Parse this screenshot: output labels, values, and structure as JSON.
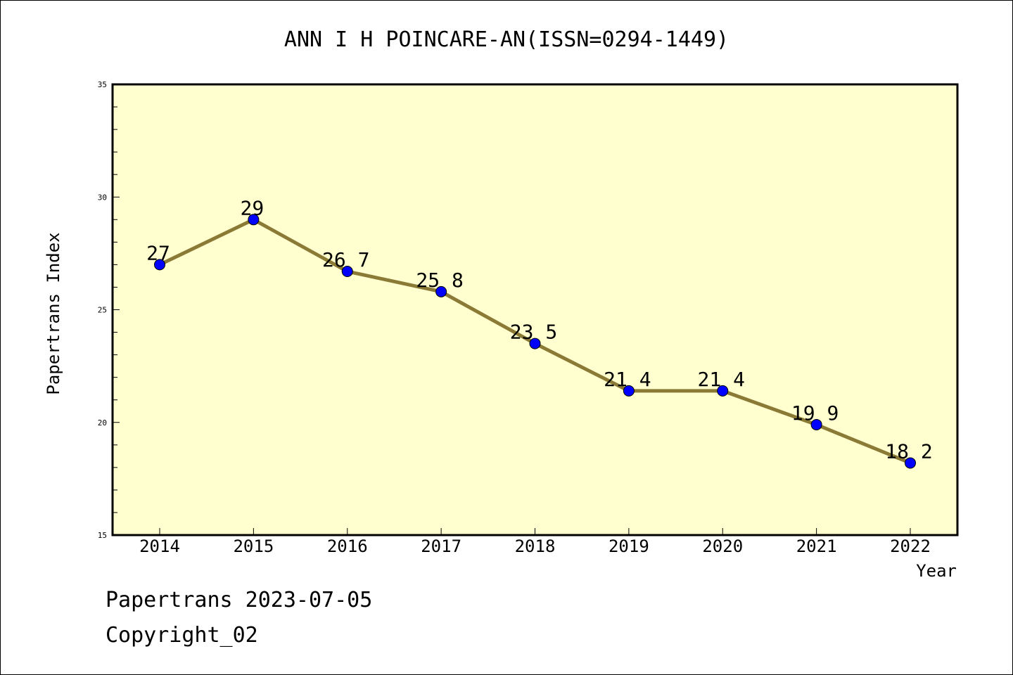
{
  "chart_data": {
    "type": "line",
    "title": "ANN I H POINCARE-AN(ISSN=0294-1449)",
    "xlabel": "Year",
    "ylabel": "Papertrans Index",
    "categories": [
      "2014",
      "2015",
      "2016",
      "2017",
      "2018",
      "2019",
      "2020",
      "2021",
      "2022"
    ],
    "series": [
      {
        "values": [
          27,
          29,
          26.7,
          25.8,
          23.5,
          21.4,
          21.4,
          19.9,
          18.2
        ]
      }
    ],
    "data_labels": [
      "27",
      "29",
      "26 7",
      "25 8",
      "23 5",
      "21 4",
      "21 4",
      "19 9",
      "18 2"
    ],
    "ylim": [
      15,
      35
    ],
    "yticks": [
      15,
      20,
      25,
      30,
      35
    ],
    "grid": false,
    "colors": {
      "plot_background": "#ffffd0",
      "line": "#8b7a35",
      "marker": "#0000ff"
    }
  },
  "footer": {
    "line1": "Papertrans 2023-07-05",
    "line2": "Copyright_02"
  }
}
